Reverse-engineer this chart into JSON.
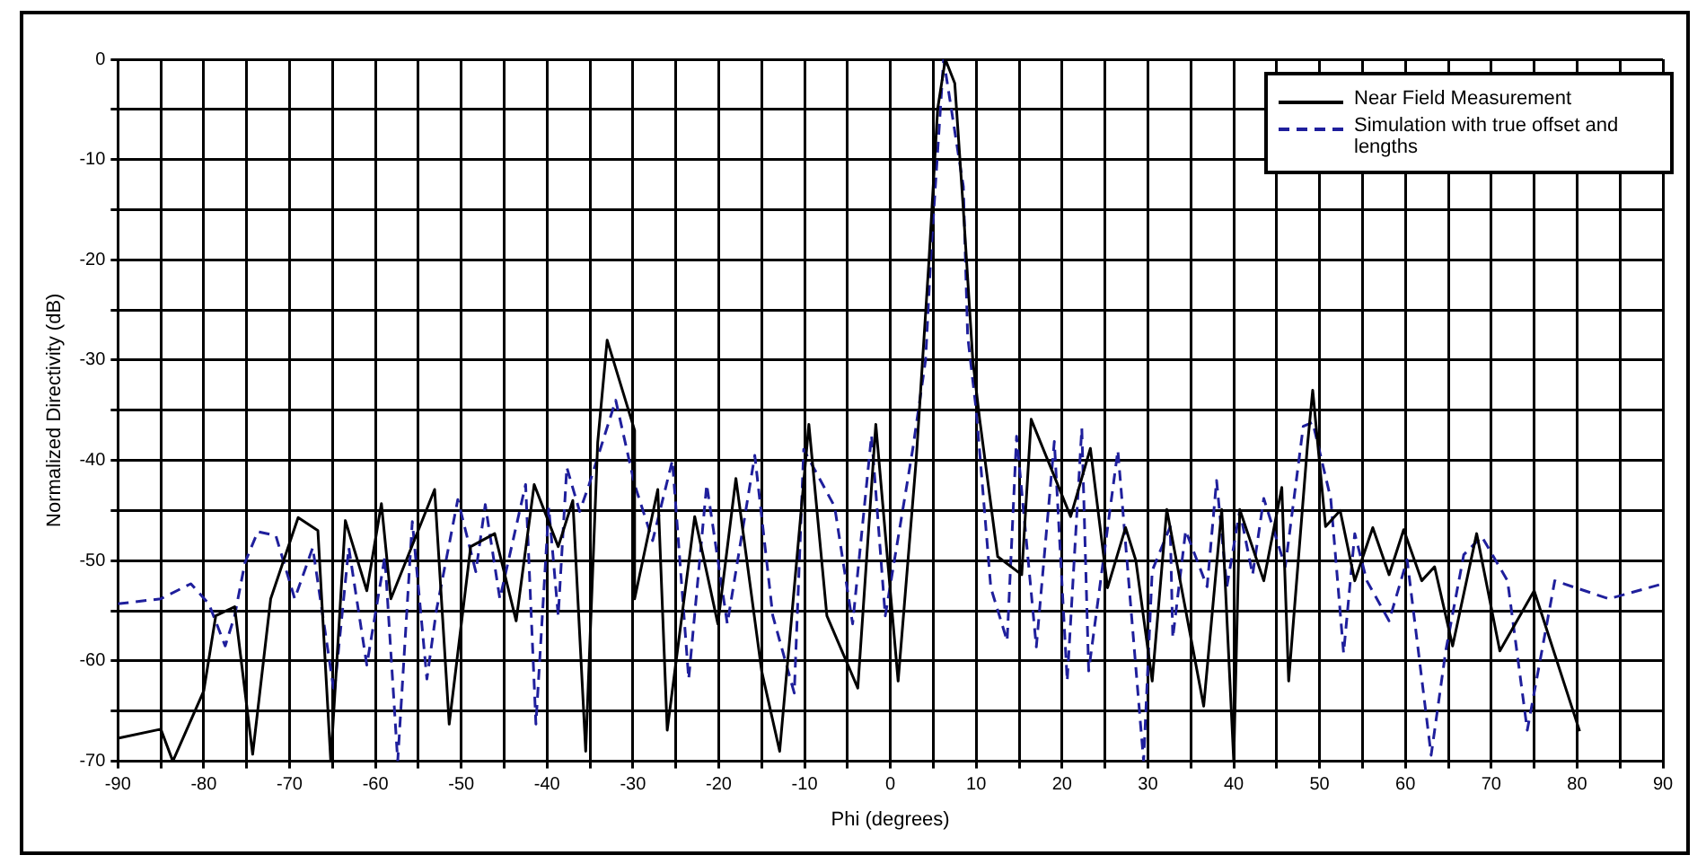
{
  "chart_data": {
    "type": "line",
    "xlabel": "Phi (degrees)",
    "ylabel": "Normalized Directivity (dB)",
    "xlim": [
      -90,
      90
    ],
    "xticks": [
      -90,
      {
        "value": -85,
        "label": null
      },
      -80,
      {
        "value": -75,
        "label": null
      },
      -70,
      {
        "value": -65,
        "label": null
      },
      -60,
      {
        "value": -55,
        "label": null
      },
      -50,
      {
        "value": -45,
        "label": null
      },
      -40,
      {
        "value": -35,
        "label": null
      },
      -30,
      {
        "value": -25,
        "label": null
      },
      -20,
      {
        "value": -15,
        "label": null
      },
      -10,
      {
        "value": -5,
        "label": null
      },
      0,
      {
        "value": 5,
        "label": null
      },
      10,
      {
        "value": 15,
        "label": null
      },
      20,
      {
        "value": 25,
        "label": null
      },
      30,
      {
        "value": 35,
        "label": null
      },
      40,
      {
        "value": 45,
        "label": null
      },
      50,
      {
        "value": 55,
        "label": null
      },
      60,
      {
        "value": 65,
        "label": null
      },
      70,
      {
        "value": 75,
        "label": null
      },
      80,
      {
        "value": 85,
        "label": null
      },
      90
    ],
    "ylim": [
      -70,
      0
    ],
    "yticks": [
      -70,
      {
        "value": -65,
        "label": null
      },
      -60,
      {
        "value": -55,
        "label": null
      },
      -50,
      {
        "value": -45,
        "label": null
      },
      -40,
      {
        "value": -35,
        "label": null
      },
      -30,
      {
        "value": -25,
        "label": null
      },
      -20,
      {
        "value": -15,
        "label": null
      },
      -10,
      {
        "value": -5,
        "label": null
      },
      0
    ],
    "grid": true,
    "legend": "top right",
    "marker": "none",
    "series": [
      {
        "name": "Near Field Measurement",
        "color": "#000000",
        "line_style": "solid",
        "x": [
          -90,
          -85,
          -83.6,
          -80,
          -78.6,
          -76.4,
          -74.3,
          -72.2,
          -69,
          -66.7,
          -65.2,
          -63.5,
          -61,
          -59.3,
          -58.2,
          -53.1,
          -51.4,
          -48.9,
          -46.1,
          -43.6,
          -41.5,
          -38.7,
          -37,
          -35.5,
          -34.1,
          -33,
          -29.8,
          -29.8,
          -27.1,
          -26,
          -22.8,
          -20.1,
          -18,
          -15,
          -12.9,
          -9.5,
          -7.4,
          -3.8,
          -1.7,
          0.9,
          3,
          4.5,
          5.5,
          6.4,
          7.5,
          8.5,
          9.6,
          10.4,
          12.5,
          15.3,
          16.4,
          21,
          23.3,
          25.3,
          27.4,
          28.6,
          30.5,
          32.2,
          36.5,
          38.6,
          40,
          40.7,
          43.5,
          45.6,
          46.4,
          48.6,
          49.2,
          50.7,
          52.4,
          54.1,
          56.2,
          58.1,
          59.8,
          61.9,
          63.4,
          65.5,
          68.3,
          71,
          75,
          80.3
        ],
        "values": [
          -67.7,
          -66.8,
          -70,
          -63,
          -55.5,
          -54.6,
          -69.3,
          -53.8,
          -45.7,
          -47,
          -70,
          -46,
          -53,
          -44.3,
          -53.8,
          -42.9,
          -66.3,
          -48.6,
          -47.3,
          -56,
          -42.4,
          -48.6,
          -44,
          -69,
          -38.2,
          -28,
          -37,
          -53.8,
          -42.9,
          -66.9,
          -45.6,
          -56.3,
          -41.8,
          -61,
          -69,
          -36.4,
          -55.5,
          -62.7,
          -36.4,
          -62,
          -40,
          -20,
          -5,
          0,
          -2.4,
          -15,
          -30,
          -35.9,
          -49.6,
          -51.4,
          -35.9,
          -45.6,
          -38.8,
          -52.7,
          -46.7,
          -50,
          -62,
          -44.9,
          -64.5,
          -44.9,
          -70,
          -44.9,
          -52,
          -42.7,
          -62,
          -38.4,
          -33,
          -46.6,
          -45,
          -52,
          -46.7,
          -51.4,
          -46.9,
          -52,
          -50.6,
          -58.5,
          -47.3,
          -59,
          -53,
          -67
        ]
      },
      {
        "name": "Simulation with true offset and lengths",
        "color": "#1f1f9c",
        "line_style": "dashed",
        "x": [
          -90,
          -85,
          -81.5,
          -79.4,
          -77.5,
          -76.4,
          -75.2,
          -73.7,
          -71.6,
          -69.4,
          -67.3,
          -64.8,
          -63.1,
          -61,
          -58.9,
          -57.4,
          -55.7,
          -54,
          -52.9,
          -50.4,
          -48.3,
          -47.2,
          -45.5,
          -42.5,
          -41.3,
          -39.8,
          -38.7,
          -37.7,
          -36.2,
          -35.1,
          -32,
          -29.8,
          -27.7,
          -25.4,
          -23.5,
          -21.4,
          -19,
          -15.8,
          -13.7,
          -11.2,
          -10.1,
          -6.5,
          -4.4,
          -2.2,
          -0.6,
          2.6,
          4.1,
          4.7,
          6.2,
          8.5,
          9,
          10,
          11.7,
          13.6,
          14.7,
          17,
          19.1,
          20.6,
          22.3,
          23.1,
          26.5,
          29.5,
          30.5,
          32.6,
          32.9,
          34.4,
          36.9,
          38,
          39.2,
          40.7,
          42.2,
          43.5,
          46,
          48.1,
          49.2,
          51.3,
          52.8,
          54.1,
          55.5,
          58.1,
          60.2,
          63,
          64.7,
          66.8,
          68.9,
          71.9,
          74.2,
          77.4,
          83.7,
          90
        ],
        "values": [
          -54.3,
          -53.8,
          -52.3,
          -54.3,
          -58.5,
          -55.5,
          -50.2,
          -47.1,
          -47.5,
          -53.8,
          -48.7,
          -63.2,
          -48.7,
          -60.4,
          -49.6,
          -70,
          -46.1,
          -61.8,
          -55,
          -43.9,
          -51.1,
          -44.4,
          -53.8,
          -42.4,
          -66.3,
          -44.7,
          -55.5,
          -40.7,
          -45.1,
          -42.4,
          -34,
          -42.4,
          -48,
          -40,
          -61.8,
          -42.4,
          -56.3,
          -39.5,
          -55.5,
          -63.2,
          -38.9,
          -44.6,
          -56.3,
          -37.5,
          -55.5,
          -38.9,
          -30,
          -19.8,
          0,
          -12.7,
          -27.6,
          -35,
          -52.7,
          -58,
          -37.6,
          -58.6,
          -38.1,
          -62,
          -36.8,
          -61,
          -39,
          -70,
          -51,
          -46.6,
          -57.7,
          -47,
          -52.6,
          -42,
          -52.6,
          -45,
          -51.4,
          -43.8,
          -50.6,
          -36.6,
          -36.2,
          -43.8,
          -59.2,
          -47.3,
          -52,
          -56,
          -49.9,
          -69.4,
          -59,
          -49.4,
          -47.6,
          -52,
          -66.9,
          -52,
          -53.8,
          -52.3
        ]
      }
    ]
  }
}
